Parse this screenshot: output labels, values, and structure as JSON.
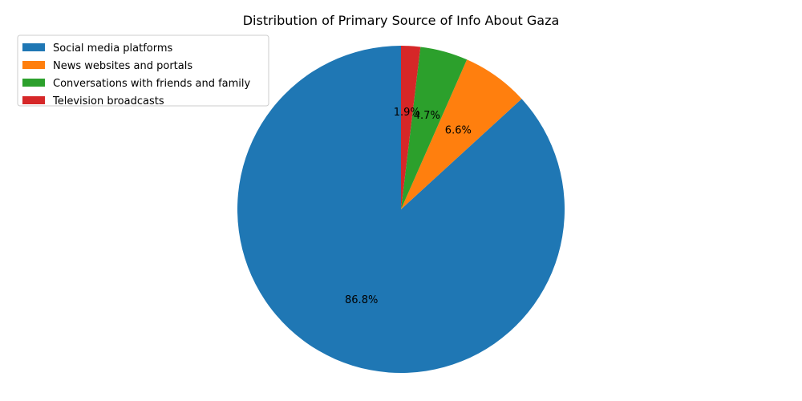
{
  "chart_data": {
    "type": "pie",
    "title": "Distribution of Primary Source of Info About Gaza",
    "legend_position": "top-left",
    "start_angle_deg": 90,
    "direction": "counterclockwise",
    "slices": [
      {
        "label": "Social media platforms",
        "value": 86.8,
        "pct_label": "86.8%",
        "color": "#1f77b4"
      },
      {
        "label": "News websites and portals",
        "value": 6.6,
        "pct_label": "6.6%",
        "color": "#ff7f0e"
      },
      {
        "label": "Conversations with friends and family",
        "value": 4.7,
        "pct_label": "4.7%",
        "color": "#2ca02c"
      },
      {
        "label": "Television broadcasts",
        "value": 1.9,
        "pct_label": "1.9%",
        "color": "#d62728"
      }
    ]
  }
}
